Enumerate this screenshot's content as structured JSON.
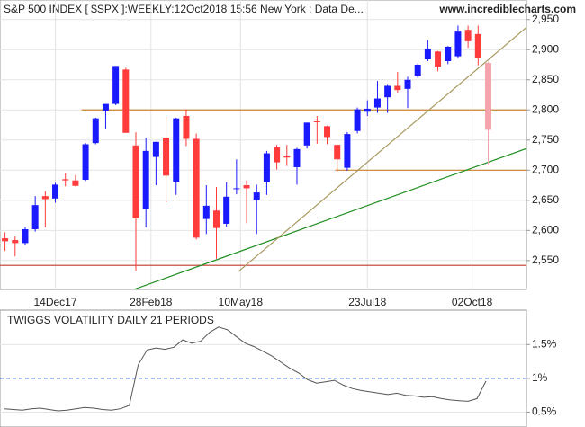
{
  "chart_data": [
    {
      "type": "candlestick",
      "title": "S&P 500 INDEX [ $SPX ]:WEEKLY:12Oct2018 15:56 New York : Data De...",
      "source": "www.incrediblecharts.com",
      "open": [
        2587,
        2584,
        2579,
        2602,
        2657,
        2653,
        2685,
        2683,
        2684,
        2745,
        2799,
        2810,
        2867,
        2741,
        2636,
        2722,
        2754,
        2681,
        2790,
        2752,
        2619,
        2633,
        2611,
        2670,
        2675,
        2651,
        2680,
        2738,
        2723,
        2705,
        2741,
        2781,
        2773,
        2742,
        2704,
        2765,
        2797,
        2804,
        2821,
        2840,
        2835,
        2857,
        2884,
        2897,
        2881,
        2889,
        2933,
        2926,
        2878
      ],
      "high": [
        2597,
        2590,
        2605,
        2657,
        2665,
        2679,
        2695,
        2692,
        2745,
        2787,
        2808,
        2873,
        2870,
        2763,
        2754,
        2747,
        2789,
        2787,
        2801,
        2761,
        2675,
        2672,
        2680,
        2718,
        2683,
        2676,
        2732,
        2742,
        2742,
        2737,
        2779,
        2790,
        2774,
        2743,
        2763,
        2804,
        2816,
        2848,
        2843,
        2863,
        2855,
        2877,
        2916,
        2898,
        2906,
        2940,
        2940,
        2940,
        2880
      ],
      "low": [
        2566,
        2557,
        2576,
        2598,
        2605,
        2646,
        2673,
        2673,
        2682,
        2743,
        2768,
        2808,
        2762,
        2533,
        2605,
        2675,
        2647,
        2659,
        2740,
        2585,
        2594,
        2553,
        2606,
        2660,
        2612,
        2594,
        2659,
        2701,
        2707,
        2676,
        2736,
        2744,
        2743,
        2698,
        2699,
        2761,
        2790,
        2795,
        2795,
        2828,
        2803,
        2853,
        2881,
        2864,
        2876,
        2886,
        2903,
        2874,
        2710
      ],
      "close": [
        2582,
        2579,
        2602,
        2642,
        2652,
        2676,
        2683,
        2674,
        2743,
        2786,
        2810,
        2873,
        2762,
        2620,
        2732,
        2747,
        2691,
        2786,
        2752,
        2588,
        2641,
        2604,
        2656,
        2670,
        2670,
        2663,
        2728,
        2713,
        2721,
        2735,
        2779,
        2780,
        2755,
        2718,
        2760,
        2801,
        2802,
        2819,
        2840,
        2833,
        2850,
        2875,
        2902,
        2872,
        2905,
        2930,
        2914,
        2886,
        2767
      ],
      "up_color": "#1a1aff",
      "down_color": "#ff3b3b",
      "last_color": "#f5a3ad",
      "xlim": [
        -0.5,
        51.8
      ],
      "xticks": [
        {
          "value": 5,
          "label": "14Dec17"
        },
        {
          "value": 14.5,
          "label": "28Feb18"
        },
        {
          "value": 23.4,
          "label": "10May18"
        },
        {
          "value": 36,
          "label": "23Jul18"
        },
        {
          "value": 46.4,
          "label": "02Oct18"
        }
      ],
      "ylim": [
        2505,
        2975
      ],
      "yticks": [
        {
          "value": 2550,
          "label": "2,550"
        },
        {
          "value": 2600,
          "label": "2,600"
        },
        {
          "value": 2650,
          "label": "2,650"
        },
        {
          "value": 2700,
          "label": "2,700"
        },
        {
          "value": 2750,
          "label": "2,750"
        },
        {
          "value": 2800,
          "label": "2,800"
        },
        {
          "value": 2850,
          "label": "2,850"
        },
        {
          "value": 2900,
          "label": "2,900"
        },
        {
          "value": 2950,
          "label": "2,950"
        }
      ],
      "grid": true,
      "hlines": [
        {
          "value": 2800,
          "from": 7.6,
          "color": "#c8832a"
        },
        {
          "value": 2700,
          "from": 32.8,
          "color": "#c8832a"
        },
        {
          "value": 2542,
          "from": -0.5,
          "color": "#c0392b"
        }
      ],
      "trendlines": [
        {
          "x": [
            12.8,
            51.8
          ],
          "y": [
            2502,
            2736
          ],
          "color": "#1f8f1f"
        },
        {
          "x": [
            23.2,
            51.8
          ],
          "y": [
            2532,
            2937
          ],
          "color": "#a89a60"
        }
      ]
    },
    {
      "type": "line",
      "title": "TWIGGS VOLATILITY DAILY 21 PERIODS",
      "values": [
        0.55,
        0.54,
        0.53,
        0.55,
        0.56,
        0.54,
        0.52,
        0.53,
        0.55,
        0.57,
        0.56,
        0.54,
        0.53,
        0.55,
        0.6,
        1.2,
        1.42,
        1.45,
        1.43,
        1.46,
        1.57,
        1.52,
        1.55,
        1.68,
        1.76,
        1.72,
        1.62,
        1.52,
        1.47,
        1.4,
        1.33,
        1.24,
        1.15,
        1.08,
        0.98,
        0.93,
        0.95,
        0.97,
        0.9,
        0.85,
        0.82,
        0.8,
        0.78,
        0.76,
        0.78,
        0.75,
        0.74,
        0.72,
        0.73,
        0.7,
        0.68,
        0.67,
        0.66,
        0.7,
        0.96
      ],
      "color": "#555555",
      "ylim": [
        0.28,
        1.97
      ],
      "yticks": [
        {
          "value": 0.5,
          "label": "0.5%"
        },
        {
          "value": 1,
          "label": "1%"
        },
        {
          "value": 1.5,
          "label": "1.5%"
        }
      ],
      "ref_line": 1,
      "ref_color": "#3355cc",
      "grid": true
    }
  ]
}
